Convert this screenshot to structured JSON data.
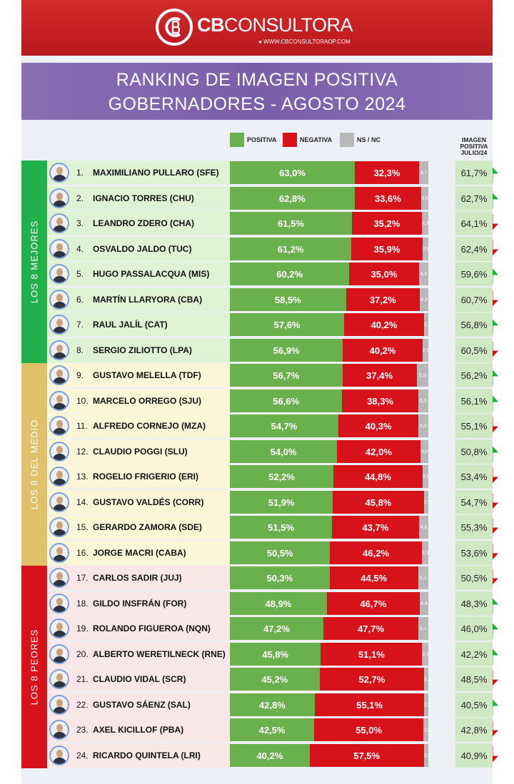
{
  "brand": {
    "name_bold": "CB",
    "name_rest": "CONSULTORA",
    "url": "WWW.CBCONSULTORAOP.COM",
    "primary_color": "#c8202a"
  },
  "title": {
    "line1": "RANKING DE IMAGEN POSITIVA",
    "line2": "GOBERNADORES - AGOSTO 2024"
  },
  "legend": {
    "positive": "POSITIVA",
    "negative": "NEGATIVA",
    "nsnc": "NS / NC"
  },
  "july_header": [
    "IMAGEN",
    "POSITIVA",
    "JULIO/24"
  ],
  "colors": {
    "positive": "#6ab04c",
    "negative": "#d8121a",
    "nsnc": "#b8b8b8",
    "arrow_up": "#22b33a",
    "arrow_down": "#d8121a",
    "group_best": "#22b04a",
    "group_mid": "#e0c068",
    "group_worst": "#d8121a"
  },
  "groups": [
    {
      "label": "LOS 8 MEJORES",
      "first": 0,
      "count": 8
    },
    {
      "label": "LOS 8 DEL MEDIO",
      "first": 8,
      "count": 8
    },
    {
      "label": "LOS 8 PEORES",
      "first": 16,
      "count": 8
    }
  ],
  "chart_data": {
    "type": "bar",
    "orientation": "horizontal",
    "stacked": true,
    "title": "RANKING DE IMAGEN POSITIVA GOBERNADORES - AGOSTO 2024",
    "series_names": [
      "POSITIVA",
      "NEGATIVA",
      "NS / NC"
    ],
    "rows": [
      {
        "rank": "1.",
        "name": "MAXIMILIANO PULLARO (SFE)",
        "pos": 63.0,
        "pos_label": "63,0%",
        "neg": 32.3,
        "neg_label": "32,3%",
        "ns": 4.7,
        "ns_label": "4,7",
        "trend": "up",
        "july": "61,7%"
      },
      {
        "rank": "2.",
        "name": "IGNACIO TORRES (CHU)",
        "pos": 62.8,
        "pos_label": "62,8%",
        "neg": 33.6,
        "neg_label": "33,6%",
        "ns": 3.6,
        "ns_label": "3,6",
        "trend": "up",
        "july": "62,7%"
      },
      {
        "rank": "3.",
        "name": "LEANDRO ZDERO (CHA)",
        "pos": 61.5,
        "pos_label": "61,5%",
        "neg": 35.2,
        "neg_label": "35,2%",
        "ns": 3.3,
        "ns_label": "3,3",
        "trend": "down",
        "july": "64,1%"
      },
      {
        "rank": "4.",
        "name": "OSVALDO JALDO (TUC)",
        "pos": 61.2,
        "pos_label": "61,2%",
        "neg": 35.9,
        "neg_label": "35,9%",
        "ns": 2.9,
        "ns_label": "2,9",
        "trend": "down",
        "july": "62,4%"
      },
      {
        "rank": "5.",
        "name": "HUGO PASSALACQUA (MIS)",
        "pos": 60.2,
        "pos_label": "60,2%",
        "neg": 35.0,
        "neg_label": "35,0%",
        "ns": 4.8,
        "ns_label": "4,8",
        "trend": "up",
        "july": "59,6%"
      },
      {
        "rank": "6.",
        "name": "MARTÍN LLARYORA (CBA)",
        "pos": 58.5,
        "pos_label": "58,5%",
        "neg": 37.2,
        "neg_label": "37,2%",
        "ns": 4.3,
        "ns_label": "4,3",
        "trend": "down",
        "july": "60,7%"
      },
      {
        "rank": "7.",
        "name": "RAUL JALÍL (CAT)",
        "pos": 57.6,
        "pos_label": "57,6%",
        "neg": 40.2,
        "neg_label": "40,2%",
        "ns": 2.2,
        "ns_label": "2,2",
        "trend": "up",
        "july": "56,8%"
      },
      {
        "rank": "8.",
        "name": "SERGIO ZILIOTTO (LPA)",
        "pos": 56.9,
        "pos_label": "56,9%",
        "neg": 40.2,
        "neg_label": "40,2%",
        "ns": 2.9,
        "ns_label": "2,9",
        "trend": "down",
        "july": "60,5%"
      },
      {
        "rank": "9.",
        "name": "GUSTAVO MELELLA (TDF)",
        "pos": 56.7,
        "pos_label": "56,7%",
        "neg": 37.4,
        "neg_label": "37,4%",
        "ns": 5.9,
        "ns_label": "5,9",
        "trend": "up",
        "july": "56,2%"
      },
      {
        "rank": "10.",
        "name": "MARCELO ORREGO (SJU)",
        "pos": 56.6,
        "pos_label": "56,6%",
        "neg": 38.3,
        "neg_label": "38,3%",
        "ns": 5.1,
        "ns_label": "5,1",
        "trend": "up",
        "july": "56,1%"
      },
      {
        "rank": "11.",
        "name": "ALFREDO CORNEJO (MZA)",
        "pos": 54.7,
        "pos_label": "54,7%",
        "neg": 40.3,
        "neg_label": "40,3%",
        "ns": 5.0,
        "ns_label": "5,0",
        "trend": "down",
        "july": "55,1%"
      },
      {
        "rank": "12.",
        "name": "CLAUDIO POGGI (SLU)",
        "pos": 54.0,
        "pos_label": "54,0%",
        "neg": 42.0,
        "neg_label": "42,0%",
        "ns": 4.0,
        "ns_label": "4,0",
        "trend": "up",
        "july": "50,8%"
      },
      {
        "rank": "13.",
        "name": "ROGELIO FRIGERIO (ERI)",
        "pos": 52.2,
        "pos_label": "52,2%",
        "neg": 44.8,
        "neg_label": "44,8%",
        "ns": 3.0,
        "ns_label": "3,0",
        "trend": "down",
        "july": "53,4%"
      },
      {
        "rank": "14.",
        "name": "GUSTAVO VALDÉS (CORR)",
        "pos": 51.9,
        "pos_label": "51,9%",
        "neg": 45.8,
        "neg_label": "45,8%",
        "ns": 2.3,
        "ns_label": "2,3",
        "trend": "down",
        "july": "54,7%"
      },
      {
        "rank": "15.",
        "name": "GERARDO ZAMORA (SDE)",
        "pos": 51.5,
        "pos_label": "51,5%",
        "neg": 43.7,
        "neg_label": "43,7%",
        "ns": 4.8,
        "ns_label": "4,8",
        "trend": "down",
        "july": "55,3%"
      },
      {
        "rank": "16.",
        "name": "JORGE MACRI (CABA)",
        "pos": 50.5,
        "pos_label": "50,5%",
        "neg": 46.2,
        "neg_label": "46,2%",
        "ns": 3.3,
        "ns_label": "3,3",
        "trend": "down",
        "july": "53,6%"
      },
      {
        "rank": "17.",
        "name": "CARLOS SADIR (JUJ)",
        "pos": 50.3,
        "pos_label": "50,3%",
        "neg": 44.5,
        "neg_label": "44,5%",
        "ns": 5.2,
        "ns_label": "5,2",
        "trend": "down",
        "july": "50,5%"
      },
      {
        "rank": "18.",
        "name": "GILDO INSFRÁN (FOR)",
        "pos": 48.9,
        "pos_label": "48,9%",
        "neg": 46.7,
        "neg_label": "46,7%",
        "ns": 4.4,
        "ns_label": "4,4",
        "trend": "up",
        "july": "48,3%"
      },
      {
        "rank": "19.",
        "name": "ROLANDO FIGUEROA (NQN)",
        "pos": 47.2,
        "pos_label": "47,2%",
        "neg": 47.7,
        "neg_label": "47,7%",
        "ns": 5.1,
        "ns_label": "5,1",
        "trend": "up",
        "july": "46,0%"
      },
      {
        "rank": "20.",
        "name": "ALBERTO WERETILNECK (RNE)",
        "pos": 45.8,
        "pos_label": "45,8%",
        "neg": 51.1,
        "neg_label": "51,1%",
        "ns": 3.1,
        "ns_label": "3,1",
        "trend": "up",
        "july": "42,2%"
      },
      {
        "rank": "21.",
        "name": "CLAUDIO VIDAL (SCR)",
        "pos": 45.2,
        "pos_label": "45,2%",
        "neg": 52.7,
        "neg_label": "52,7%",
        "ns": 2.1,
        "ns_label": "2,1",
        "trend": "down",
        "july": "48,5%"
      },
      {
        "rank": "22.",
        "name": "GUSTAVO SÁENZ (SAL)",
        "pos": 42.8,
        "pos_label": "42,8%",
        "neg": 55.1,
        "neg_label": "55,1%",
        "ns": 2.1,
        "ns_label": "2,1",
        "trend": "up",
        "july": "40,5%"
      },
      {
        "rank": "23.",
        "name": "AXEL KICILLOF (PBA)",
        "pos": 42.5,
        "pos_label": "42,5%",
        "neg": 55.0,
        "neg_label": "55,0%",
        "ns": 2.5,
        "ns_label": "2,5",
        "trend": "down",
        "july": "42,8%"
      },
      {
        "rank": "24.",
        "name": "RICARDO QUINTELA (LRI)",
        "pos": 40.2,
        "pos_label": "40,2%",
        "neg": 57.5,
        "neg_label": "57,5%",
        "ns": 2.3,
        "ns_label": "2,3",
        "trend": "down",
        "july": "40,9%"
      }
    ]
  }
}
